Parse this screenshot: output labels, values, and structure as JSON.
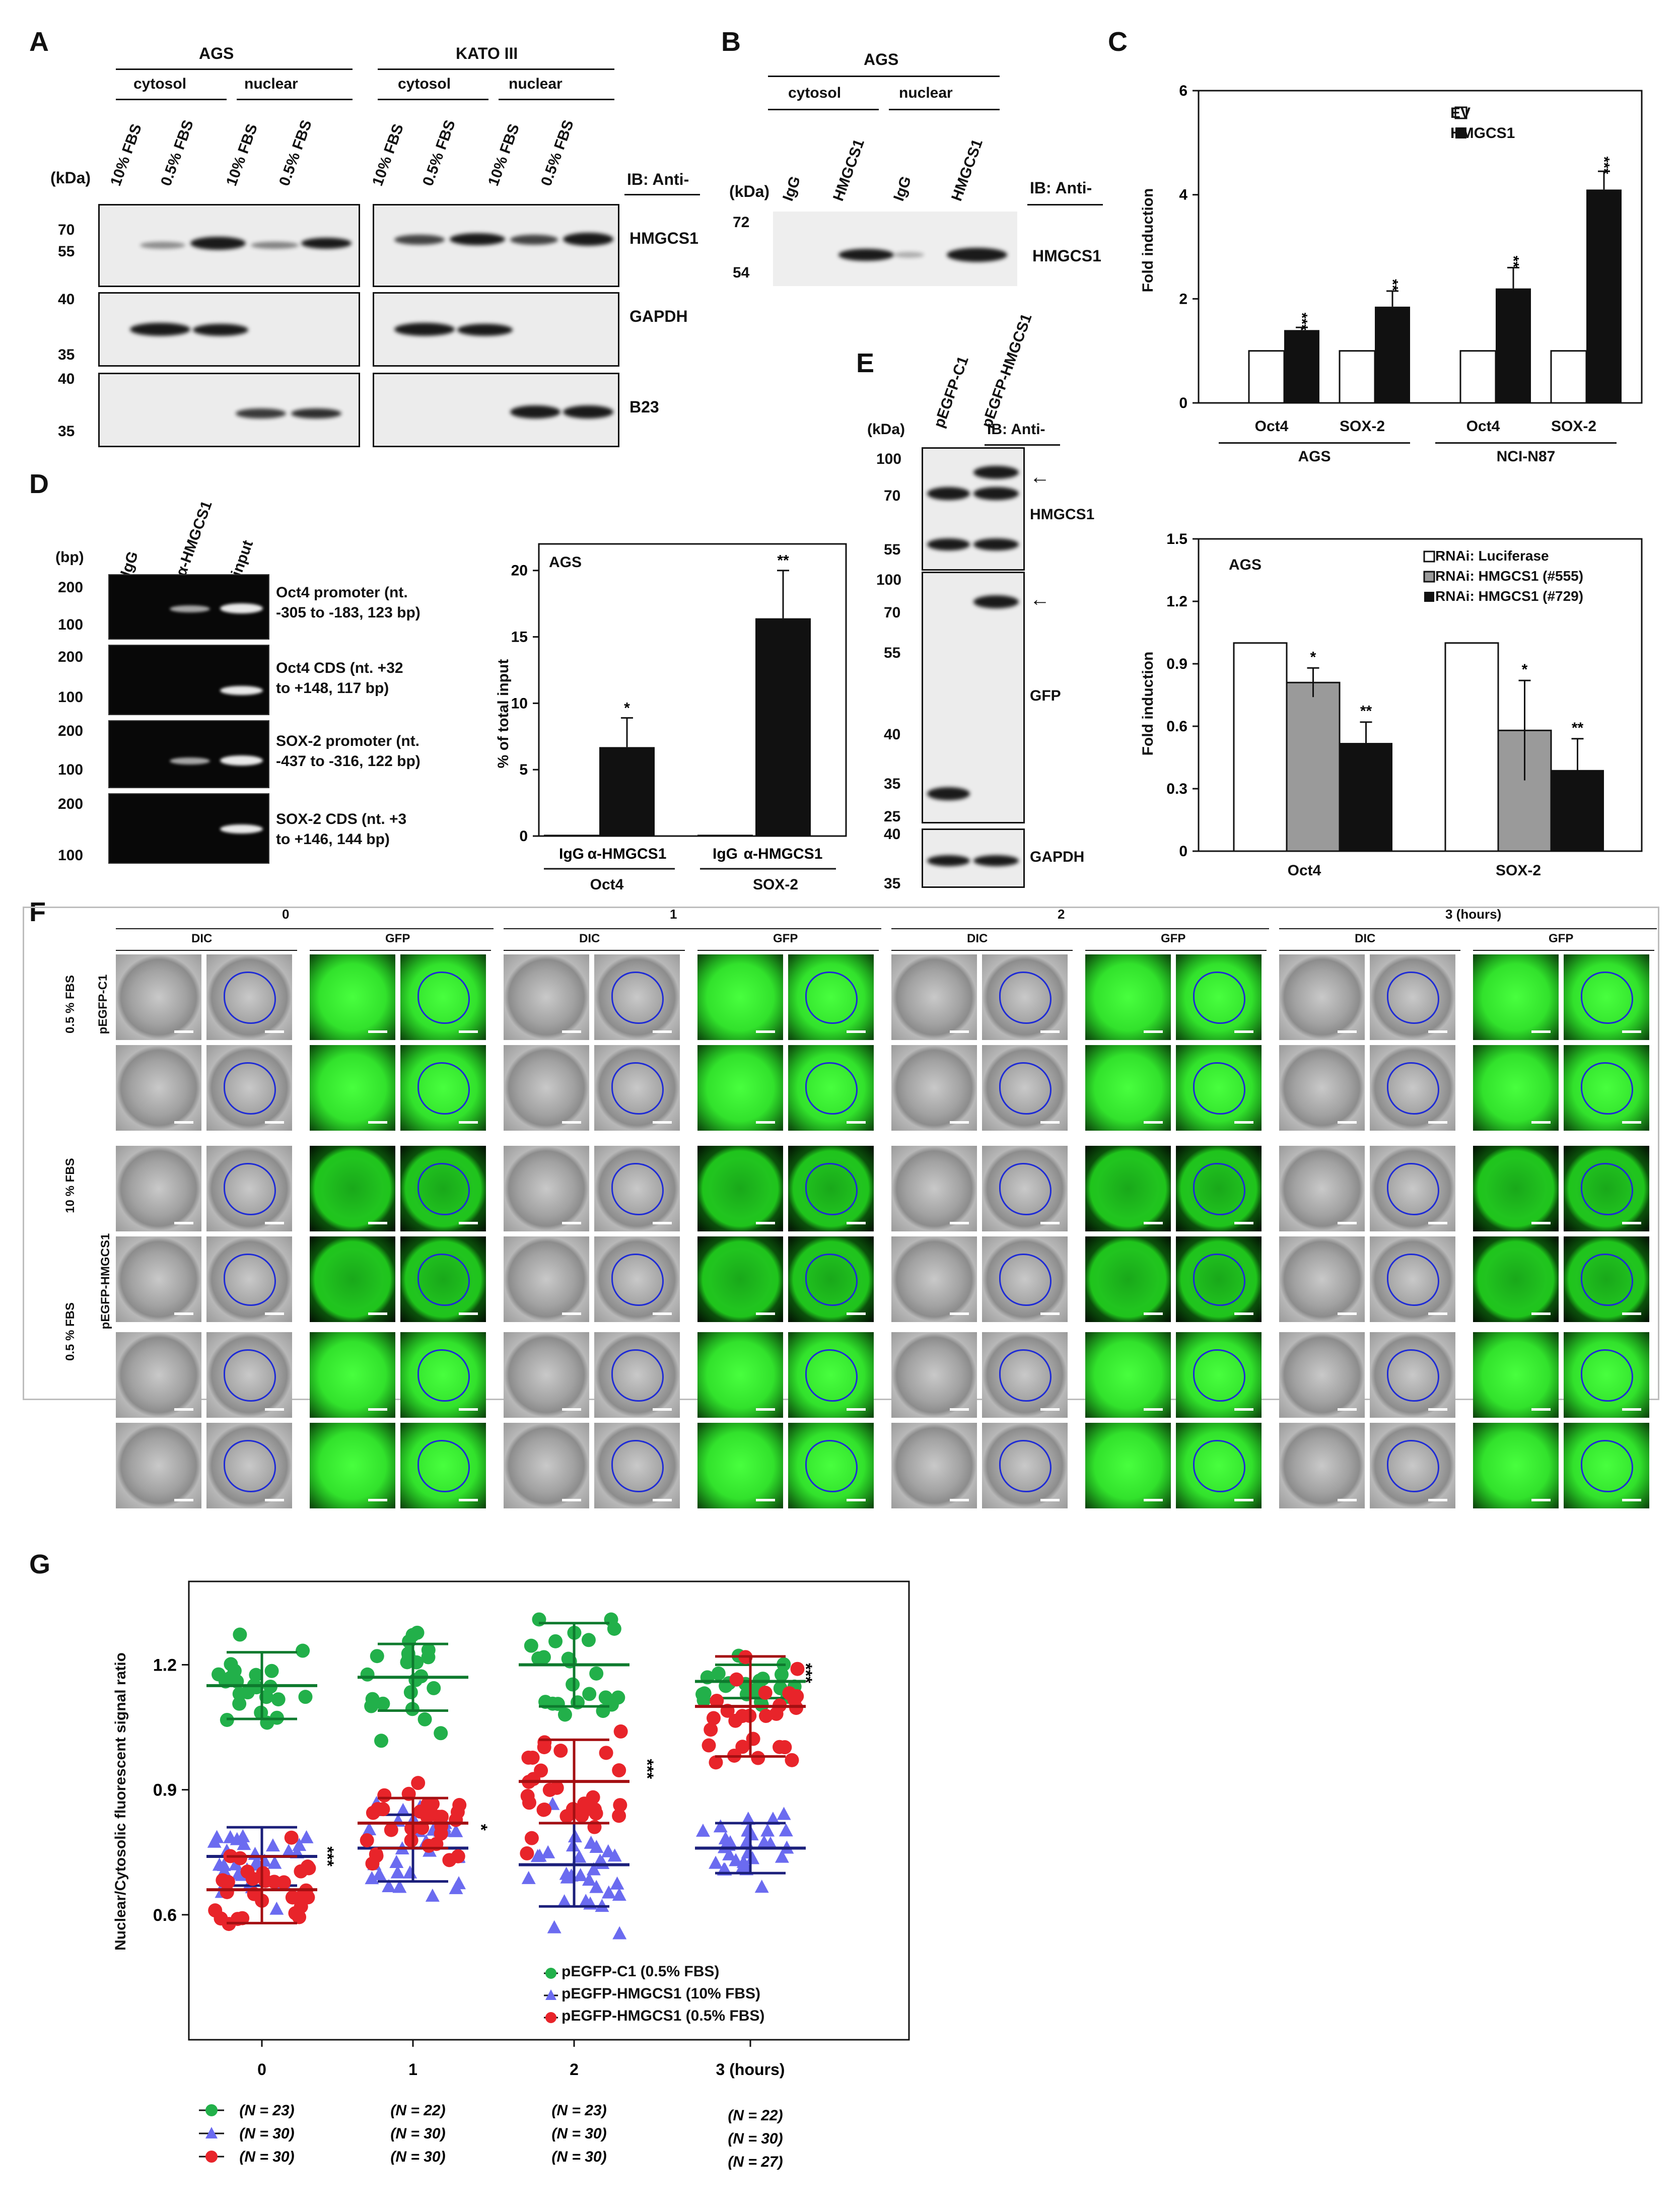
{
  "panelA": {
    "letter": "A",
    "ags": "AGS",
    "kato": "KATO III",
    "cytosol": "cytosol",
    "nuclear": "nuclear",
    "lanes": [
      "10% FBS",
      "0.5% FBS",
      "10% FBS",
      "0.5% FBS"
    ],
    "kda": "(kDa)",
    "ib": "IB: Anti-",
    "proteins": [
      "HMGCS1",
      "GAPDH",
      "B23"
    ],
    "markers1": [
      "70",
      "55"
    ],
    "markers2": [
      "40",
      "35"
    ],
    "markers3": [
      "40",
      "35"
    ]
  },
  "panelB": {
    "letter": "B",
    "ags": "AGS",
    "cytosol": "cytosol",
    "nuclear": "nuclear",
    "lanes": [
      "IgG",
      "HMGCS1",
      "IgG",
      "HMGCS1"
    ],
    "kda": "(kDa)",
    "ib": "IB: Anti-",
    "protein": "HMGCS1",
    "markers": [
      "72",
      "54"
    ]
  },
  "panelC": {
    "letter": "C",
    "top": {
      "ylabel": "Fold induction",
      "yticks": [
        "0",
        "2",
        "4",
        "6"
      ],
      "legend": [
        "EV",
        "HMGCS1"
      ],
      "groups": [
        "Oct4",
        "SOX-2",
        "Oct4",
        "SOX-2"
      ],
      "cells": [
        "AGS",
        "NCI-N87"
      ],
      "ev": [
        1,
        1,
        1,
        1
      ],
      "hmgcs1": [
        1.4,
        1.85,
        2.2,
        4.1
      ],
      "err": [
        0.05,
        0.3,
        0.4,
        0.35
      ],
      "sig": [
        "***",
        "**",
        "**",
        "***"
      ]
    },
    "bottom": {
      "title": "AGS",
      "ylabel": "Fold induction",
      "yticks": [
        "0",
        "0.3",
        "0.6",
        "0.9",
        "1.2",
        "1.5"
      ],
      "legend": [
        "RNAi: Luciferase",
        "RNAi: HMGCS1 (#555)",
        "RNAi: HMGCS1 (#729)"
      ],
      "groups": [
        "Oct4",
        "SOX-2"
      ],
      "luc": [
        1,
        1
      ],
      "r555": [
        0.81,
        0.58
      ],
      "r729": [
        0.52,
        0.39
      ],
      "err555": [
        0.07,
        0.24
      ],
      "err729": [
        0.1,
        0.15
      ],
      "sig555": [
        "*",
        "*"
      ],
      "sig729": [
        "**",
        "**"
      ]
    }
  },
  "panelD": {
    "letter": "D",
    "bp": "(bp)",
    "lanes": [
      "IgG",
      "α-HMGCS1",
      "input"
    ],
    "rows": [
      {
        "m1": "200",
        "m2": "100",
        "l1": "Oct4 promoter (nt.",
        "l2": "-305 to -183, 123 bp)"
      },
      {
        "m1": "200",
        "m2": "100",
        "l1": "Oct4 CDS (nt. +32",
        "l2": "to +148,  117 bp)"
      },
      {
        "m1": "200",
        "m2": "100",
        "l1": "SOX-2 promoter (nt.",
        "l2": "-437 to -316, 122 bp)"
      },
      {
        "m1": "200",
        "m2": "100",
        "l1": "SOX-2 CDS (nt. +3",
        "l2": "to +146, 144 bp)"
      }
    ],
    "chart": {
      "title": "AGS",
      "ylabel": "% of total input",
      "yticks": [
        "0",
        "5",
        "10",
        "15",
        "20"
      ],
      "cats": [
        "IgG",
        "α-HMGCS1",
        "IgG",
        "α-HMGCS1"
      ],
      "groups": [
        "Oct4",
        "SOX-2"
      ],
      "values": [
        0.1,
        6.7,
        0.1,
        16.4
      ],
      "err": [
        0,
        2.2,
        0,
        3.6
      ],
      "sig": [
        "",
        "*",
        "",
        "**"
      ]
    }
  },
  "panelE": {
    "letter": "E",
    "lanes": [
      "pEGFP-C1",
      "pEGFP-HMGCS1"
    ],
    "kda": "(kDa)",
    "ib": "IB: Anti-",
    "proteins": [
      "HMGCS1",
      "GFP",
      "GAPDH"
    ],
    "m1": [
      "100",
      "70",
      "55"
    ],
    "m2": [
      "100",
      "70",
      "55",
      "40",
      "35",
      "25"
    ],
    "m3": [
      "40",
      "35"
    ]
  },
  "panelF": {
    "letter": "F",
    "times": [
      "0",
      "1",
      "2",
      "3 (hours)"
    ],
    "cols": [
      "DIC",
      "GFP"
    ],
    "rowlabels": [
      "0.5 % FBS",
      "10 % FBS",
      "0.5 % FBS"
    ],
    "constructs": [
      "pEGFP-C1",
      "pEGFP-HMGCS1"
    ]
  },
  "chart_data": {
    "type": "scatter",
    "panel": "G",
    "ylabel": "Nuclear/Cytosolic fluorescent signal ratio",
    "yticks": [
      "0.6",
      "0.9",
      "1.2"
    ],
    "ylim": [
      0.3,
      1.4
    ],
    "x": [
      "0",
      "1",
      "2",
      "3 (hours)"
    ],
    "series": [
      {
        "name": "pEGFP-C1 (0.5% FBS)",
        "color": "#22b04a",
        "marker": "circle",
        "mean": [
          1.15,
          1.17,
          1.2,
          1.16
        ],
        "sd": [
          0.08,
          0.08,
          0.1,
          0.04
        ],
        "n": [
          "(N = 23)",
          "(N = 22)",
          "(N = 23)",
          "(N = 22)"
        ]
      },
      {
        "name": "pEGFP-HMGCS1 (10% FBS)",
        "color": "#6b6bf0",
        "marker": "triangle",
        "mean": [
          0.74,
          0.76,
          0.72,
          0.76
        ],
        "sd": [
          0.07,
          0.08,
          0.1,
          0.06
        ],
        "n": [
          "(N = 30)",
          "(N = 30)",
          "(N = 30)",
          "(N = 30)"
        ]
      },
      {
        "name": "pEGFP-HMGCS1 (0.5% FBS)",
        "color": "#e8242a",
        "marker": "circle",
        "mean": [
          0.66,
          0.82,
          0.92,
          1.1
        ],
        "sd": [
          0.08,
          0.06,
          0.1,
          0.12
        ],
        "n": [
          "(N = 30)",
          "(N = 30)",
          "(N = 30)",
          "(N = 27)"
        ]
      }
    ],
    "sig": [
      "***",
      "*",
      "***",
      "***"
    ]
  },
  "panelG": {
    "letter": "G"
  }
}
